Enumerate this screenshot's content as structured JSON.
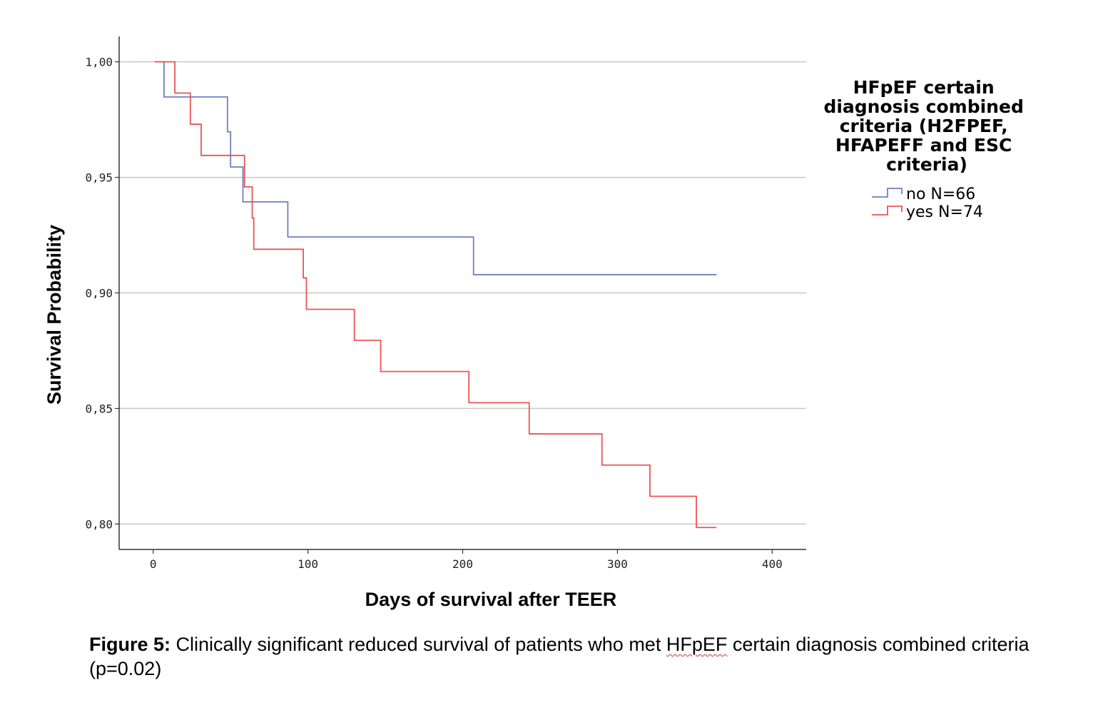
{
  "chart_data": {
    "type": "line",
    "step": true,
    "xlabel": "Days of survival after TEER",
    "ylabel": "Survival Probability",
    "xlim": [
      -22,
      422
    ],
    "ylim": [
      0.789,
      1.011
    ],
    "x_ticks": [
      0,
      100,
      200,
      300,
      400
    ],
    "x_tick_labels": [
      "0",
      "100",
      "200",
      "300",
      "400"
    ],
    "y_ticks": [
      0.8,
      0.85,
      0.9,
      0.95,
      1.0
    ],
    "y_tick_labels": [
      "0,80",
      "0,85",
      "0,90",
      "0,95",
      "1,00"
    ],
    "grid": "horizontal",
    "legend": {
      "title_lines": [
        "HFpEF certain",
        "diagnosis combined",
        "criteria (H2FPEF,",
        "HFAPEFF and ESC",
        "criteria)"
      ],
      "placement": "right"
    },
    "series": [
      {
        "name": "no N=66",
        "color": "#6f7fc2",
        "points": [
          [
            1,
            1.0
          ],
          [
            7,
            0.9848
          ],
          [
            48,
            0.9697
          ],
          [
            50,
            0.9545
          ],
          [
            58,
            0.9394
          ],
          [
            87,
            0.9242
          ],
          [
            207,
            0.9079
          ],
          [
            364,
            0.9079
          ]
        ]
      },
      {
        "name": "yes N=74",
        "color": "#ec5454",
        "points": [
          [
            1,
            1.0
          ],
          [
            14,
            0.9865
          ],
          [
            24,
            0.973
          ],
          [
            31,
            0.9595
          ],
          [
            59,
            0.9459
          ],
          [
            64,
            0.9324
          ],
          [
            65,
            0.9189
          ],
          [
            97,
            0.9065
          ],
          [
            99,
            0.8929
          ],
          [
            130,
            0.8795
          ],
          [
            147,
            0.866
          ],
          [
            204,
            0.8525
          ],
          [
            243,
            0.839
          ],
          [
            290,
            0.8255
          ],
          [
            321,
            0.812
          ],
          [
            351,
            0.7985
          ],
          [
            364,
            0.7985
          ]
        ]
      }
    ]
  },
  "caption": {
    "label": "Figure 5:",
    "text_before": " Clinically significant reduced survival of patients who met ",
    "highlight": "HFpEF",
    "text_after": " certain diagnosis combined criteria (p=0.02)"
  }
}
